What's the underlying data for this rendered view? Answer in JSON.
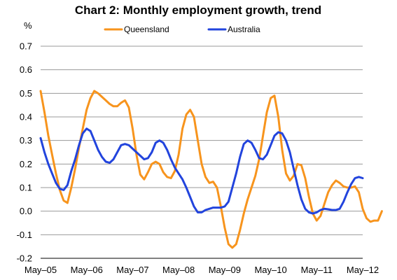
{
  "chart_data": {
    "type": "line",
    "title": "Chart 2: Monthly employment growth, trend",
    "ylabel": "%",
    "xlabel": "",
    "ylim": [
      -0.2,
      0.7
    ],
    "yticks": [
      -0.2,
      -0.1,
      0.0,
      0.1,
      0.2,
      0.3,
      0.4,
      0.5,
      0.6,
      0.7
    ],
    "ytick_labels": [
      "-0.2",
      "-0.1",
      "0.0",
      "0.1",
      "0.2",
      "0.3",
      "0.4",
      "0.5",
      "0.6",
      "0.7"
    ],
    "xticks": [
      "May–05",
      "May–06",
      "May–07",
      "May–08",
      "May–09",
      "May–10",
      "May–11",
      "May–12"
    ],
    "xlim": [
      "2005-05",
      "2012-05"
    ],
    "grid": true,
    "legend": "top-center",
    "series": [
      {
        "name": "Queensland",
        "color": "#F7941D",
        "points": [
          [
            "2005-05",
            0.51
          ],
          [
            "2005-06",
            0.42
          ],
          [
            "2005-07",
            0.32
          ],
          [
            "2005-08",
            0.24
          ],
          [
            "2005-09",
            0.16
          ],
          [
            "2005-10",
            0.09
          ],
          [
            "2005-11",
            0.045
          ],
          [
            "2005-12",
            0.035
          ],
          [
            "2006-01",
            0.1
          ],
          [
            "2006-02",
            0.18
          ],
          [
            "2006-03",
            0.27
          ],
          [
            "2006-04",
            0.35
          ],
          [
            "2006-05",
            0.43
          ],
          [
            "2006-06",
            0.48
          ],
          [
            "2006-07",
            0.51
          ],
          [
            "2006-08",
            0.5
          ],
          [
            "2006-09",
            0.485
          ],
          [
            "2006-10",
            0.47
          ],
          [
            "2006-11",
            0.455
          ],
          [
            "2006-12",
            0.445
          ],
          [
            "2007-01",
            0.445
          ],
          [
            "2007-02",
            0.46
          ],
          [
            "2007-03",
            0.47
          ],
          [
            "2007-04",
            0.44
          ],
          [
            "2007-05",
            0.35
          ],
          [
            "2007-06",
            0.24
          ],
          [
            "2007-07",
            0.155
          ],
          [
            "2007-08",
            0.135
          ],
          [
            "2007-09",
            0.165
          ],
          [
            "2007-10",
            0.2
          ],
          [
            "2007-11",
            0.21
          ],
          [
            "2007-12",
            0.2
          ],
          [
            "2008-01",
            0.165
          ],
          [
            "2008-02",
            0.145
          ],
          [
            "2008-03",
            0.14
          ],
          [
            "2008-04",
            0.17
          ],
          [
            "2008-05",
            0.24
          ],
          [
            "2008-06",
            0.35
          ],
          [
            "2008-07",
            0.41
          ],
          [
            "2008-08",
            0.43
          ],
          [
            "2008-09",
            0.4
          ],
          [
            "2008-10",
            0.3
          ],
          [
            "2008-11",
            0.2
          ],
          [
            "2008-12",
            0.145
          ],
          [
            "2009-01",
            0.12
          ],
          [
            "2009-02",
            0.125
          ],
          [
            "2009-03",
            0.1
          ],
          [
            "2009-04",
            0.02
          ],
          [
            "2009-05",
            -0.07
          ],
          [
            "2009-06",
            -0.14
          ],
          [
            "2009-07",
            -0.155
          ],
          [
            "2009-08",
            -0.14
          ],
          [
            "2009-09",
            -0.08
          ],
          [
            "2009-10",
            -0.01
          ],
          [
            "2009-11",
            0.05
          ],
          [
            "2009-12",
            0.1
          ],
          [
            "2010-01",
            0.15
          ],
          [
            "2010-02",
            0.22
          ],
          [
            "2010-03",
            0.32
          ],
          [
            "2010-04",
            0.42
          ],
          [
            "2010-05",
            0.48
          ],
          [
            "2010-06",
            0.49
          ],
          [
            "2010-07",
            0.4
          ],
          [
            "2010-08",
            0.26
          ],
          [
            "2010-09",
            0.16
          ],
          [
            "2010-10",
            0.13
          ],
          [
            "2010-11",
            0.15
          ],
          [
            "2010-12",
            0.2
          ],
          [
            "2011-01",
            0.195
          ],
          [
            "2011-02",
            0.14
          ],
          [
            "2011-03",
            0.06
          ],
          [
            "2011-04",
            -0.01
          ],
          [
            "2011-05",
            -0.04
          ],
          [
            "2011-06",
            -0.02
          ],
          [
            "2011-07",
            0.03
          ],
          [
            "2011-08",
            0.08
          ],
          [
            "2011-09",
            0.11
          ],
          [
            "2011-10",
            0.13
          ],
          [
            "2011-11",
            0.12
          ],
          [
            "2011-12",
            0.105
          ],
          [
            "2012-01",
            0.1
          ],
          [
            "2012-02",
            0.1
          ],
          [
            "2012-03",
            0.105
          ],
          [
            "2012-04",
            0.08
          ],
          [
            "2012-05",
            0.01
          ],
          [
            "2012-06",
            -0.03
          ],
          [
            "2012-07",
            -0.045
          ],
          [
            "2012-08",
            -0.04
          ],
          [
            "2012-09",
            -0.04
          ],
          [
            "2012-10",
            0.0
          ]
        ]
      },
      {
        "name": "Australia",
        "color": "#2244DD",
        "points": [
          [
            "2005-05",
            0.31
          ],
          [
            "2005-06",
            0.25
          ],
          [
            "2005-07",
            0.2
          ],
          [
            "2005-08",
            0.16
          ],
          [
            "2005-09",
            0.12
          ],
          [
            "2005-10",
            0.095
          ],
          [
            "2005-11",
            0.09
          ],
          [
            "2005-12",
            0.11
          ],
          [
            "2006-01",
            0.17
          ],
          [
            "2006-02",
            0.22
          ],
          [
            "2006-03",
            0.28
          ],
          [
            "2006-04",
            0.33
          ],
          [
            "2006-05",
            0.35
          ],
          [
            "2006-06",
            0.34
          ],
          [
            "2006-07",
            0.3
          ],
          [
            "2006-08",
            0.26
          ],
          [
            "2006-09",
            0.23
          ],
          [
            "2006-10",
            0.21
          ],
          [
            "2006-11",
            0.205
          ],
          [
            "2006-12",
            0.22
          ],
          [
            "2007-01",
            0.25
          ],
          [
            "2007-02",
            0.28
          ],
          [
            "2007-03",
            0.285
          ],
          [
            "2007-04",
            0.28
          ],
          [
            "2007-05",
            0.265
          ],
          [
            "2007-06",
            0.25
          ],
          [
            "2007-07",
            0.235
          ],
          [
            "2007-08",
            0.22
          ],
          [
            "2007-09",
            0.225
          ],
          [
            "2007-10",
            0.25
          ],
          [
            "2007-11",
            0.29
          ],
          [
            "2007-12",
            0.3
          ],
          [
            "2008-01",
            0.29
          ],
          [
            "2008-02",
            0.26
          ],
          [
            "2008-03",
            0.22
          ],
          [
            "2008-04",
            0.185
          ],
          [
            "2008-05",
            0.16
          ],
          [
            "2008-06",
            0.135
          ],
          [
            "2008-07",
            0.1
          ],
          [
            "2008-08",
            0.06
          ],
          [
            "2008-09",
            0.02
          ],
          [
            "2008-10",
            -0.005
          ],
          [
            "2008-11",
            -0.005
          ],
          [
            "2008-12",
            0.005
          ],
          [
            "2009-01",
            0.01
          ],
          [
            "2009-02",
            0.015
          ],
          [
            "2009-03",
            0.015
          ],
          [
            "2009-04",
            0.015
          ],
          [
            "2009-05",
            0.02
          ],
          [
            "2009-06",
            0.04
          ],
          [
            "2009-07",
            0.1
          ],
          [
            "2009-08",
            0.16
          ],
          [
            "2009-09",
            0.23
          ],
          [
            "2009-10",
            0.285
          ],
          [
            "2009-11",
            0.3
          ],
          [
            "2009-12",
            0.29
          ],
          [
            "2010-01",
            0.26
          ],
          [
            "2010-02",
            0.225
          ],
          [
            "2010-03",
            0.22
          ],
          [
            "2010-04",
            0.24
          ],
          [
            "2010-05",
            0.28
          ],
          [
            "2010-06",
            0.32
          ],
          [
            "2010-07",
            0.335
          ],
          [
            "2010-08",
            0.33
          ],
          [
            "2010-09",
            0.3
          ],
          [
            "2010-10",
            0.25
          ],
          [
            "2010-11",
            0.18
          ],
          [
            "2010-12",
            0.11
          ],
          [
            "2011-01",
            0.05
          ],
          [
            "2011-02",
            0.01
          ],
          [
            "2011-03",
            -0.005
          ],
          [
            "2011-04",
            -0.01
          ],
          [
            "2011-05",
            -0.005
          ],
          [
            "2011-06",
            0.005
          ],
          [
            "2011-07",
            0.01
          ],
          [
            "2011-08",
            0.008
          ],
          [
            "2011-09",
            0.005
          ],
          [
            "2011-10",
            0.005
          ],
          [
            "2011-11",
            0.01
          ],
          [
            "2011-12",
            0.04
          ],
          [
            "2012-01",
            0.08
          ],
          [
            "2012-02",
            0.115
          ],
          [
            "2012-03",
            0.14
          ],
          [
            "2012-04",
            0.145
          ],
          [
            "2012-05",
            0.14
          ]
        ]
      }
    ]
  }
}
